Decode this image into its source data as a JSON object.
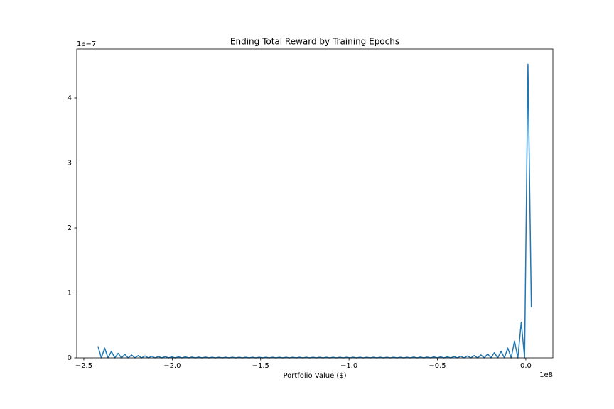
{
  "chart_data": {
    "type": "line",
    "title": "Ending Total Reward by Training Epochs",
    "x_label": "Portfolio Value ($)",
    "x_offset_label": "1e8",
    "y_offset_label": "1e−7",
    "x": [
      -2.42,
      -2.401,
      -2.382,
      -2.363,
      -2.344,
      -2.325,
      -2.306,
      -2.287,
      -2.268,
      -2.249,
      -2.23,
      -2.211,
      -2.192,
      -2.173,
      -2.154,
      -2.135,
      -2.116,
      -2.097,
      -2.078,
      -2.059,
      -2.04,
      -2.021,
      -2.002,
      -1.983,
      -1.964,
      -1.945,
      -1.926,
      -1.907,
      -1.888,
      -1.869,
      -1.85,
      -1.831,
      -1.812,
      -1.793,
      -1.774,
      -1.755,
      -1.736,
      -1.717,
      -1.698,
      -1.679,
      -1.66,
      -1.641,
      -1.622,
      -1.603,
      -1.584,
      -1.565,
      -1.546,
      -1.527,
      -1.508,
      -1.489,
      -1.47,
      -1.451,
      -1.432,
      -1.413,
      -1.394,
      -1.375,
      -1.356,
      -1.337,
      -1.318,
      -1.299,
      -1.28,
      -1.261,
      -1.242,
      -1.223,
      -1.204,
      -1.185,
      -1.166,
      -1.147,
      -1.128,
      -1.109,
      -1.09,
      -1.071,
      -1.052,
      -1.033,
      -1.014,
      -0.995,
      -0.976,
      -0.957,
      -0.938,
      -0.919,
      -0.9,
      -0.881,
      -0.862,
      -0.843,
      -0.824,
      -0.805,
      -0.786,
      -0.767,
      -0.748,
      -0.729,
      -0.71,
      -0.691,
      -0.672,
      -0.653,
      -0.634,
      -0.615,
      -0.596,
      -0.577,
      -0.558,
      -0.539,
      -0.52,
      -0.501,
      -0.482,
      -0.463,
      -0.444,
      -0.425,
      -0.406,
      -0.387,
      -0.368,
      -0.349,
      -0.33,
      -0.311,
      -0.292,
      -0.273,
      -0.254,
      -0.235,
      -0.216,
      -0.197,
      -0.178,
      -0.159,
      -0.14,
      -0.121,
      -0.102,
      -0.083,
      -0.064,
      -0.045,
      -0.026,
      -0.007,
      0.012,
      0.031
    ],
    "series": [
      {
        "color": "#1f77b4",
        "values": [
          0.18,
          0,
          0.15,
          0,
          0.1,
          0,
          0.07,
          0,
          0.055,
          0,
          0.045,
          0,
          0.035,
          0,
          0.03,
          0,
          0.025,
          0,
          0.02,
          0,
          0.02,
          0,
          0.015,
          0,
          0.015,
          0,
          0.015,
          0,
          0.012,
          0,
          0.012,
          0,
          0.012,
          0,
          0.01,
          0,
          0.01,
          0,
          0.01,
          0,
          0.01,
          0,
          0.01,
          0,
          0.01,
          0,
          0.01,
          0,
          0.01,
          0,
          0.01,
          0,
          0.01,
          0,
          0.01,
          0,
          0.01,
          0,
          0.01,
          0,
          0.01,
          0,
          0.01,
          0,
          0.01,
          0,
          0.01,
          0,
          0.01,
          0,
          0.01,
          0,
          0.01,
          0,
          0.01,
          0,
          0.01,
          0,
          0.01,
          0,
          0.01,
          0,
          0.01,
          0,
          0.01,
          0,
          0.01,
          0,
          0.01,
          0,
          0.01,
          0,
          0.01,
          0,
          0.012,
          0,
          0.012,
          0,
          0.012,
          0,
          0.015,
          0,
          0.015,
          0,
          0.015,
          0,
          0.02,
          0,
          0.025,
          0,
          0.03,
          0,
          0.035,
          0,
          0.045,
          0,
          0.06,
          0,
          0.08,
          0,
          0.1,
          0,
          0.15,
          0,
          0.26,
          0,
          0.55,
          0,
          4.52,
          0.78
        ]
      }
    ],
    "xlim": [
      -2.54,
      0.153
    ],
    "ylim": [
      0,
      4.754
    ],
    "xticks": [
      {
        "value": -2.5,
        "label": "−2.5"
      },
      {
        "value": -2.0,
        "label": "−2.0"
      },
      {
        "value": -1.5,
        "label": "−1.5"
      },
      {
        "value": -1.0,
        "label": "−1.0"
      },
      {
        "value": -0.5,
        "label": "−0.5"
      },
      {
        "value": 0,
        "label": "0.0"
      }
    ],
    "yticks": [
      0,
      1,
      2,
      3,
      4
    ],
    "grid": false
  }
}
